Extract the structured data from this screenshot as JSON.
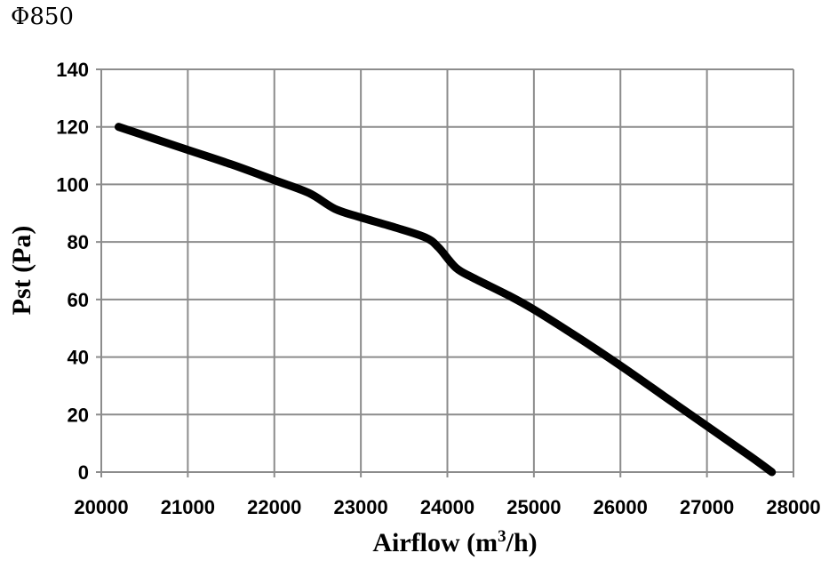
{
  "chart_data": {
    "type": "line",
    "title": "Φ850",
    "xlabel": "Airflow (m",
    "xlabel_sup": "3",
    "xlabel_suffix": "/h)",
    "ylabel": "Pst (Pa)",
    "xlim": [
      20000,
      28000
    ],
    "ylim": [
      0,
      140
    ],
    "xticks": [
      20000,
      21000,
      22000,
      23000,
      24000,
      25000,
      26000,
      27000,
      28000
    ],
    "yticks": [
      0,
      20,
      40,
      60,
      80,
      100,
      120,
      140
    ],
    "grid": true,
    "line_color": "#000000",
    "series": [
      {
        "x": [
          20200,
          20600,
          21000,
          21500,
          22000,
          22400,
          22700,
          23000,
          23400,
          23750,
          23900,
          24100,
          24300,
          24700,
          25000,
          25500,
          26000,
          26500,
          27000,
          27500,
          27750
        ],
        "y": [
          120,
          116,
          112,
          107,
          101.5,
          97,
          91.5,
          88.5,
          85,
          81.5,
          78,
          71,
          67.5,
          61.5,
          56.5,
          47,
          37,
          26.5,
          16,
          5.5,
          0
        ]
      }
    ]
  }
}
